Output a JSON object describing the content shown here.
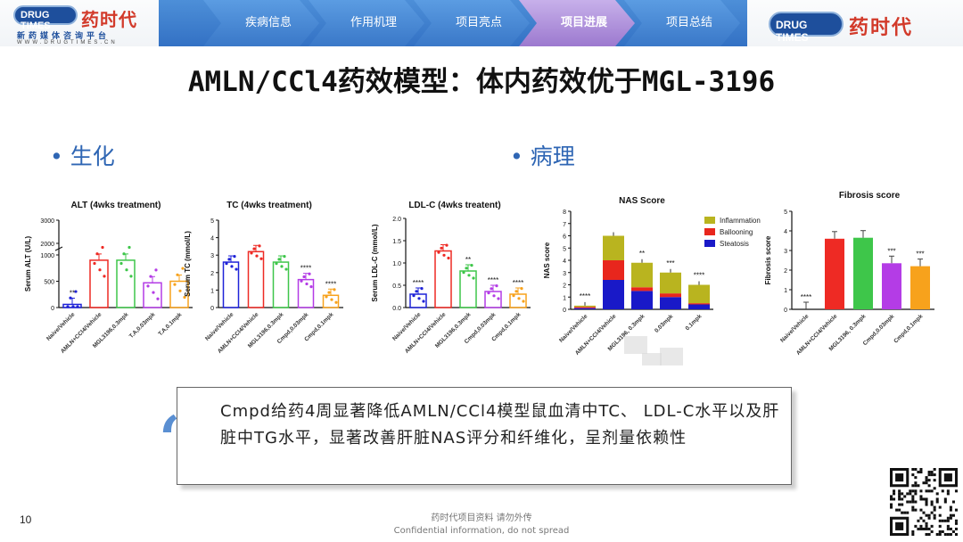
{
  "header": {
    "logo_left": {
      "pill": "DRUG TIMES",
      "cn": "药时代",
      "sub": "新药媒体咨询平台",
      "url": "WWW.DRUGTIMES.CN"
    },
    "logo_right": {
      "pill": "DRUG TIMES",
      "cn": "药时代"
    },
    "nav": [
      "疾病信息",
      "作用机理",
      "项目亮点",
      "项目进展",
      "项目总结"
    ],
    "active_index": 3
  },
  "title": "AMLN/CCl4药效模型：体内药效优于MGL-3196",
  "sections": {
    "left": "• 生化",
    "right": "• 病理"
  },
  "chart_data": [
    {
      "type": "bar",
      "title": "ALT (4wks treatment)",
      "ylabel": "Serum ALT (U/L)",
      "categories": [
        "Naive/Vehicle",
        "AMLN+CCl4/Vehicle",
        "MGL3196,0.3mpk",
        "T.A,0.03mpk",
        "T.A,0.1mpk"
      ],
      "values": [
        60,
        900,
        900,
        470,
        500
      ],
      "sig": [
        "**",
        "",
        "",
        "",
        ""
      ],
      "yticks": [
        "0",
        "500",
        "1000",
        "2000",
        "3000"
      ]
    },
    {
      "type": "bar",
      "title": "TC (4wks treatment)",
      "ylabel": "Serum TC (mmol/L)",
      "categories": [
        "Naive/Vehicle",
        "AMLN+CCl4/Vehicle",
        "MGL3196,0.3mpk",
        "Cmpd,0.03mpk",
        "Cmpd,0.1mpk"
      ],
      "values": [
        2.6,
        3.2,
        2.6,
        1.6,
        0.7
      ],
      "sig": [
        "",
        "",
        "",
        "****",
        "****"
      ],
      "yticks": [
        "0",
        "1",
        "2",
        "3",
        "4",
        "5"
      ],
      "ylim": [
        0,
        5
      ]
    },
    {
      "type": "bar",
      "title": "LDL-C (4wks treatent)",
      "ylabel": "Serum LDL-C (mmol/L)",
      "categories": [
        "Naive/Vehicle",
        "AMLN+CCl4/Vehicle",
        "MGL3196,0.3mpk",
        "Cmpd,0.03mpk",
        "Cmpd,0.1mpk"
      ],
      "values": [
        0.3,
        1.27,
        0.82,
        0.36,
        0.3
      ],
      "sig": [
        "****",
        "",
        "**",
        "****",
        "****"
      ],
      "yticks": [
        "0.0",
        "0.5",
        "1.0",
        "1.5",
        "2.0"
      ],
      "ylim": [
        0,
        2
      ]
    },
    {
      "type": "bar",
      "stacked": true,
      "title": "NAS Score",
      "ylabel": "NAS score",
      "categories": [
        "Naive/Vehicle",
        "AMLN+CCl4/Vehicle",
        "MGL3196, 0.3mpk",
        "0.03mpk",
        "0.1mpk"
      ],
      "series": [
        {
          "name": "Steatosis",
          "values": [
            0.1,
            2.4,
            1.5,
            1.0,
            0.4
          ]
        },
        {
          "name": "Ballooning",
          "values": [
            0.1,
            1.6,
            0.3,
            0.3,
            0.1
          ]
        },
        {
          "name": "Inflammation",
          "values": [
            0.1,
            2.0,
            2.0,
            1.7,
            1.5
          ]
        }
      ],
      "sig": [
        "****",
        "",
        "**",
        "***",
        "****"
      ],
      "yticks": [
        "0",
        "1",
        "2",
        "3",
        "4",
        "5",
        "6",
        "7",
        "8"
      ],
      "ylim": [
        0,
        8
      ]
    },
    {
      "type": "bar",
      "title": "Fibrosis score",
      "ylabel": "Fibrosis score",
      "categories": [
        "Naive/Vehicle",
        "AMLN+CCl4/Vehicle",
        "MGL3196, 0.3mpk",
        "Cmpd,0.03mpk",
        "Cmpd,0.1mpk"
      ],
      "values": [
        0,
        3.6,
        3.65,
        2.35,
        2.2
      ],
      "sig": [
        "****",
        "",
        "",
        "***",
        "***"
      ],
      "yticks": [
        "0",
        "1",
        "2",
        "3",
        "4",
        "5"
      ],
      "ylim": [
        0,
        5
      ]
    }
  ],
  "colors": {
    "blue": "#1f23d8",
    "red": "#ee2a24",
    "green": "#3ec64a",
    "purple": "#b43ce6",
    "orange": "#f7a21c",
    "nas_inflammation": "#b9b41f",
    "nas_ballooning": "#e8261d",
    "nas_steatosis": "#1919c8",
    "nav": "#3f7fcc",
    "nav_active": "#a887d8",
    "accent": "#2f66b4"
  },
  "quote": {
    "text": "Cmpd给药4周显著降低AMLN/CCl4模型鼠血清中TC、 LDL-C水平以及肝脏中TG水平，显著改善肝脏NAS评分和纤维化，呈剂量依赖性",
    "mark": "“"
  },
  "footer": {
    "line1": "药时代项目资料 请勿外传",
    "line2": "Confidential information, do not spread",
    "page": "10"
  }
}
